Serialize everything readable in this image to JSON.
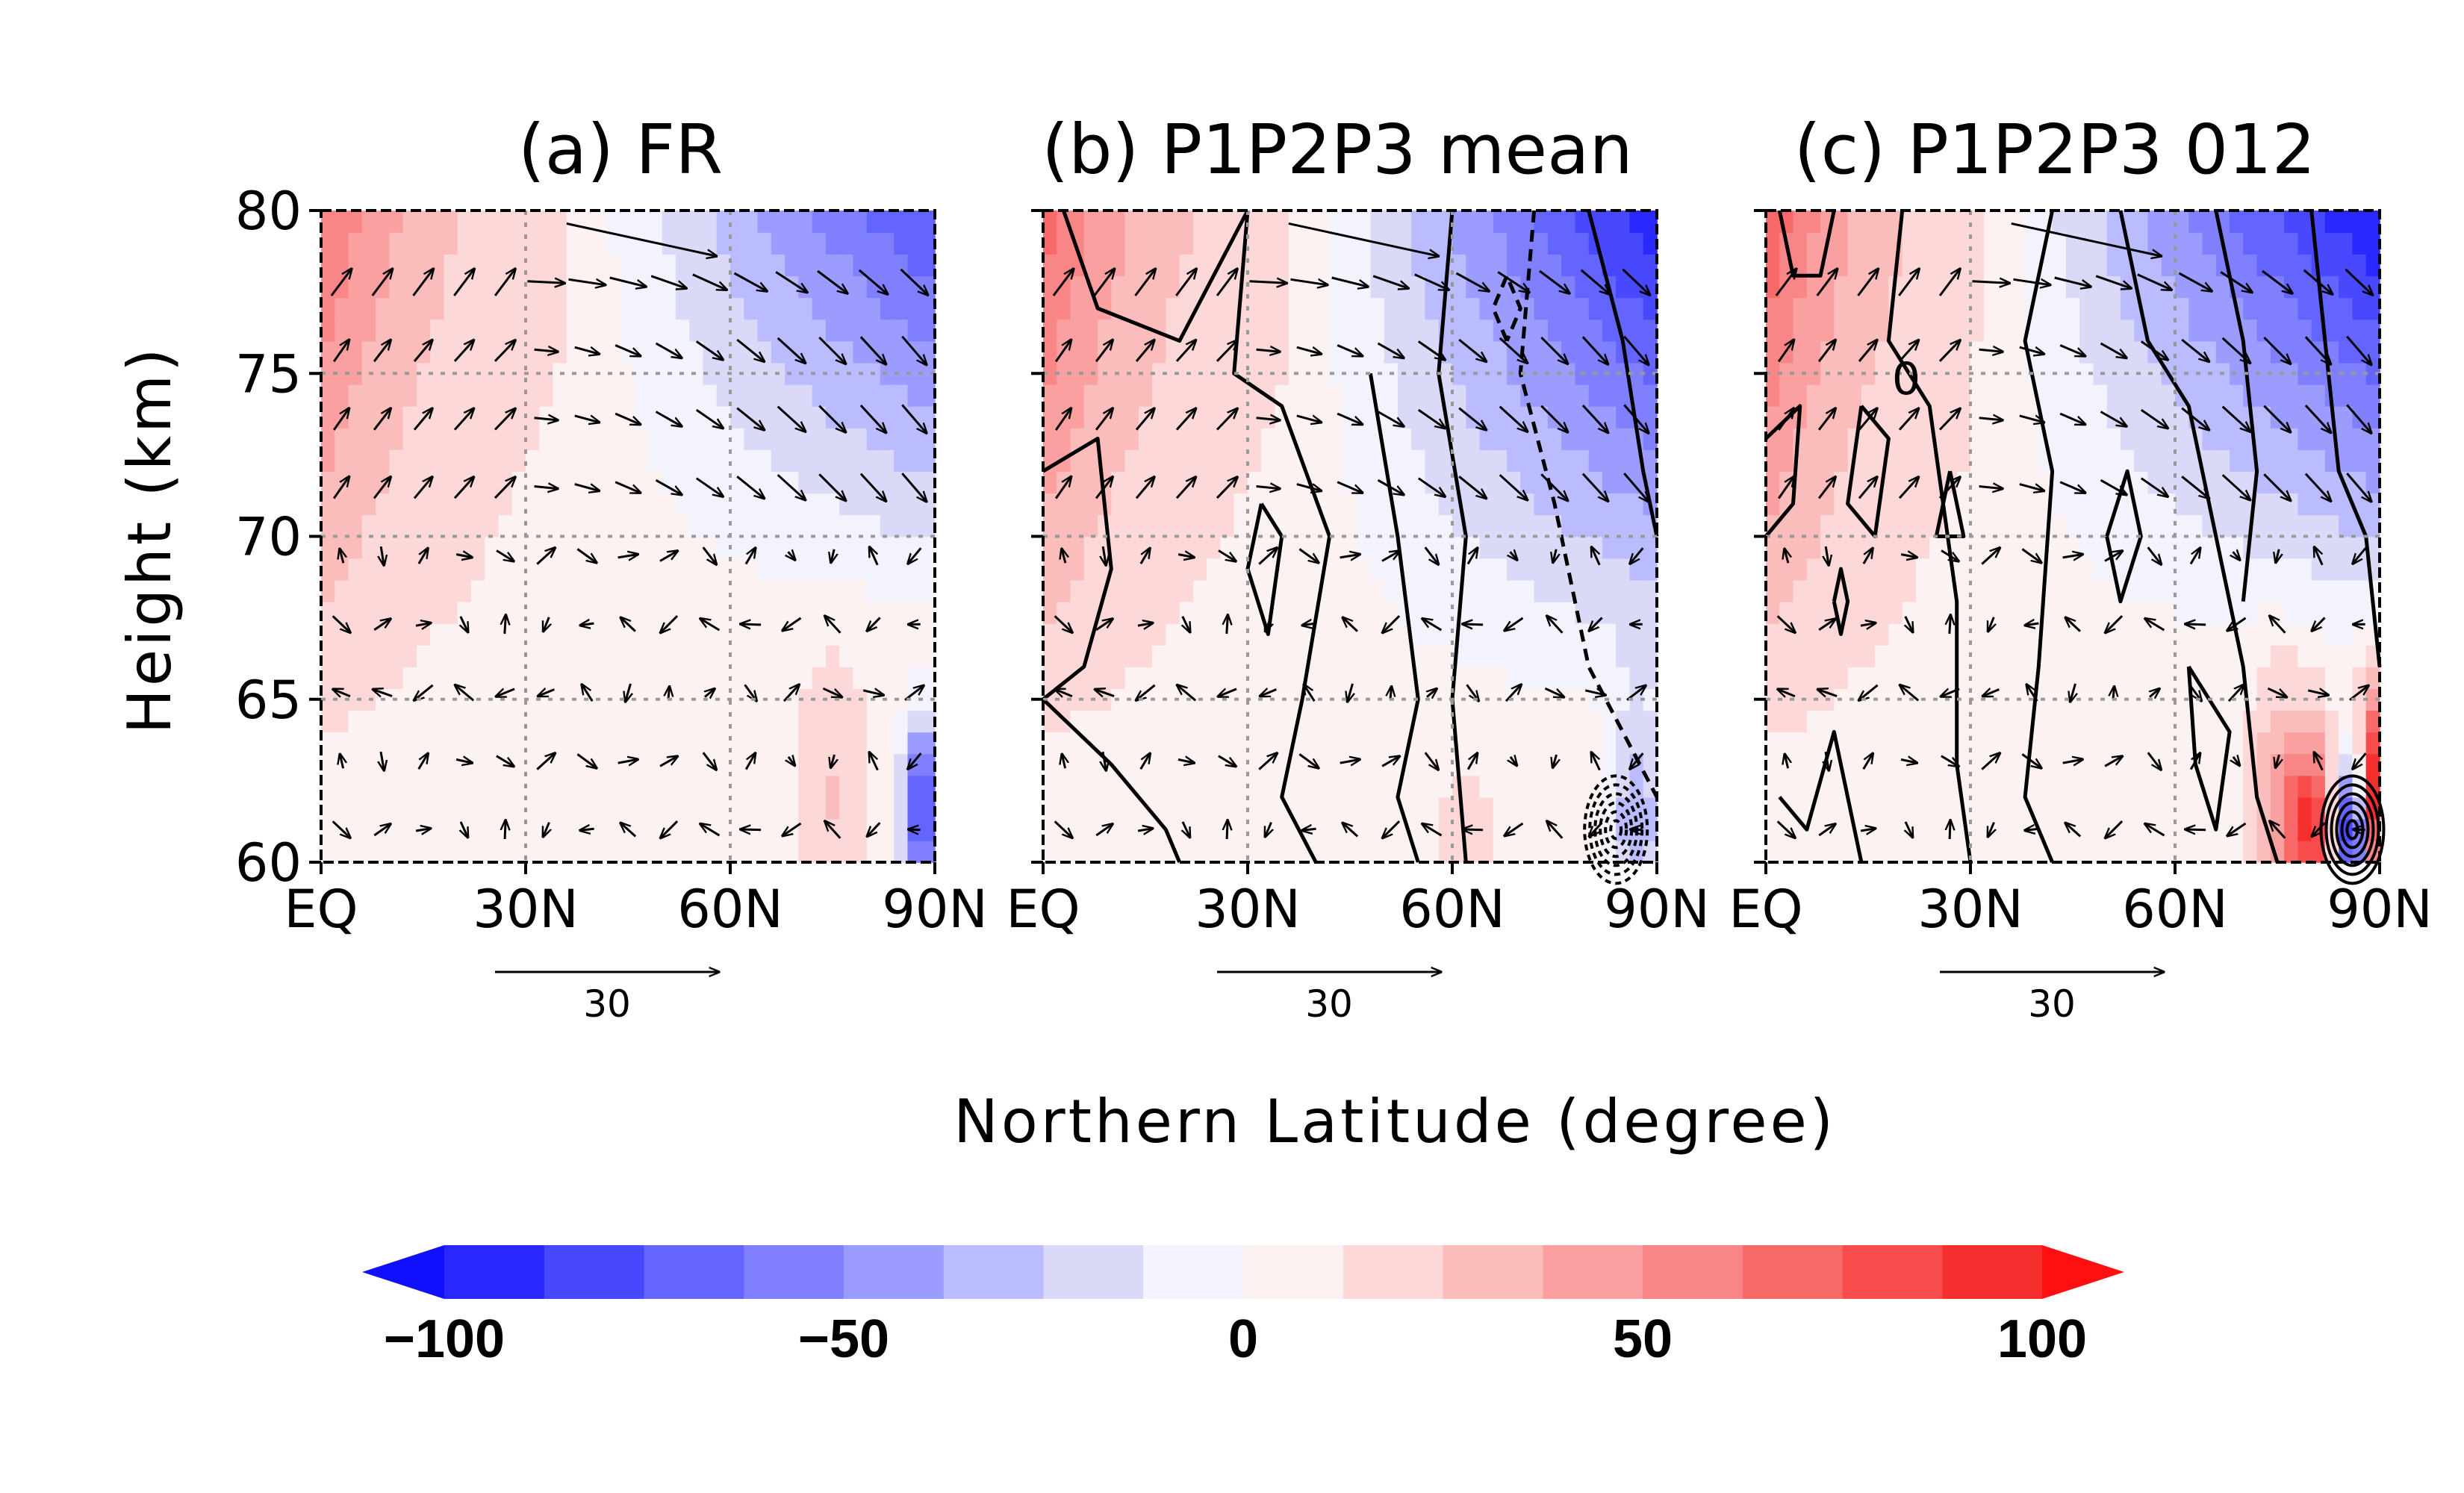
{
  "chart_data": [
    {
      "type": "heatmap",
      "title": "(a) FR",
      "xlabel": "Northern Latitude (degree)",
      "ylabel": "Height (km)",
      "xlim": [
        0,
        90
      ],
      "ylim": [
        60,
        80
      ],
      "x_ticks": [
        "EQ",
        "30N",
        "60N",
        "90N"
      ],
      "x_tick_values": [
        0,
        30,
        60,
        90
      ],
      "y_ticks": [
        "60",
        "65",
        "70",
        "75",
        "80"
      ],
      "y_tick_values": [
        60,
        65,
        70,
        75,
        80
      ],
      "grid": true,
      "contours": false,
      "reference_vector": {
        "label": "30",
        "magnitude": 30
      },
      "field_summary": "positive (red) in low latitudes 0-30N above 65 km, strongest near 80 km; negative (blue) poleward of 40N above 70 km, strongest near 85-90N and 80 km; weak elsewhere"
    },
    {
      "type": "heatmap",
      "title": "(b) P1P2P3 mean",
      "xlabel": "Northern Latitude (degree)",
      "xlim": [
        0,
        90
      ],
      "ylim": [
        60,
        80
      ],
      "x_ticks": [
        "EQ",
        "30N",
        "60N",
        "90N"
      ],
      "x_tick_values": [
        0,
        30,
        60,
        90
      ],
      "grid": true,
      "contours": true,
      "reference_vector": {
        "label": "30",
        "magnitude": 30
      },
      "field_summary": "similar pattern to (a), stronger negative values near the pole above 72 km, dense contours near 85-90N below 64 km"
    },
    {
      "type": "heatmap",
      "title": "(c) P1P2P3 012",
      "xlabel": "Northern Latitude (degree)",
      "xlim": [
        0,
        90
      ],
      "ylim": [
        60,
        80
      ],
      "x_ticks": [
        "EQ",
        "30N",
        "60N",
        "90N"
      ],
      "x_tick_values": [
        0,
        30,
        60,
        90
      ],
      "grid": true,
      "contours": true,
      "contour_labels": [
        "0"
      ],
      "reference_vector": {
        "label": "30",
        "magnitude": 30
      },
      "field_summary": "positive at low latitudes, negative poleward above 66 km, strong positive/negative couplet near 80-90N below 63 km"
    }
  ],
  "colorbar": {
    "type": "colorbar",
    "min": -100,
    "max": 100,
    "step": 12.5,
    "extend": "both",
    "tick_labels": [
      "−100",
      "−50",
      "0",
      "50",
      "100"
    ],
    "tick_values": [
      -100,
      -50,
      0,
      50,
      100
    ],
    "colors": [
      "#1010ff",
      "#2828ff",
      "#4848ff",
      "#6464ff",
      "#8080ff",
      "#9c9cff",
      "#bbbbff",
      "#dadaf8",
      "#f3f3fd",
      "#fdf2f2",
      "#fcd8d8",
      "#fbbcbc",
      "#faa0a0",
      "#f98686",
      "#f86a6a",
      "#f74c4c",
      "#f52e2e",
      "#ff1010"
    ]
  },
  "figure": {
    "shared_xlabel": "Northern Latitude (degree)"
  }
}
